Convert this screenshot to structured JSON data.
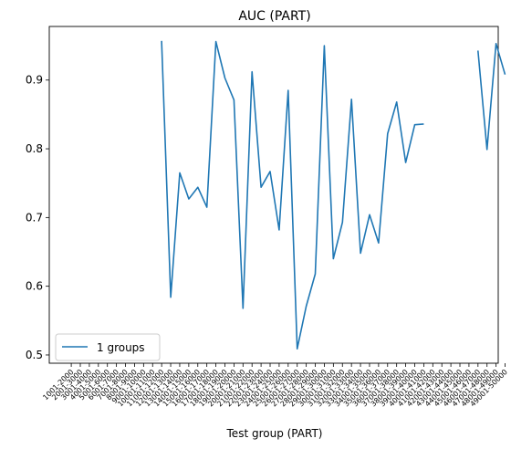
{
  "chart_data": {
    "type": "line",
    "title": "AUC (PART)",
    "xlabel": "Test group (PART)",
    "ylabel": "",
    "categories": [
      "1001-2000",
      "2001-3000",
      "3001-4000",
      "4001-5000",
      "5001-6000",
      "6001-7000",
      "7001-8000",
      "8001-9000",
      "9001-10000",
      "10001-11000",
      "11001-12000",
      "12001-13000",
      "13001-14000",
      "14001-15000",
      "15001-16000",
      "16001-17000",
      "17001-18000",
      "18001-19000",
      "19001-20000",
      "20001-21000",
      "21001-22000",
      "22001-23000",
      "23001-24000",
      "24001-25000",
      "25001-26000",
      "26001-27000",
      "27001-28000",
      "28001-29000",
      "29001-30000",
      "30001-31000",
      "31001-32000",
      "32001-33000",
      "33001-34000",
      "34001-35000",
      "35001-36000",
      "36001-37000",
      "37001-38000",
      "38001-39000",
      "39001-40000",
      "40001-41000",
      "41001-42000",
      "42001-43000",
      "43001-44000",
      "44001-45000",
      "45001-46000",
      "46001-47000",
      "47001-48000",
      "48001-49000",
      "49001-50000"
    ],
    "series": [
      {
        "name": "1 groups",
        "color": "#1f77b4",
        "values": [
          null,
          null,
          null,
          null,
          null,
          null,
          null,
          null,
          null,
          null,
          0.957,
          0.584,
          0.765,
          0.727,
          0.744,
          0.715,
          0.956,
          0.903,
          0.871,
          0.568,
          0.912,
          0.744,
          0.767,
          0.682,
          0.885,
          0.509,
          0.571,
          0.618,
          0.95,
          0.64,
          0.693,
          0.872,
          0.648,
          0.704,
          0.663,
          0.822,
          0.868,
          0.78,
          0.835,
          0.836,
          null,
          null,
          null,
          null,
          null,
          0.943,
          0.799,
          0.953,
          0.908
        ]
      }
    ],
    "yticks": [
      0.5,
      0.6,
      0.7,
      0.8,
      0.9
    ],
    "ylim": [
      0.488,
      0.978
    ],
    "grid": false,
    "legend": "lower-left"
  }
}
